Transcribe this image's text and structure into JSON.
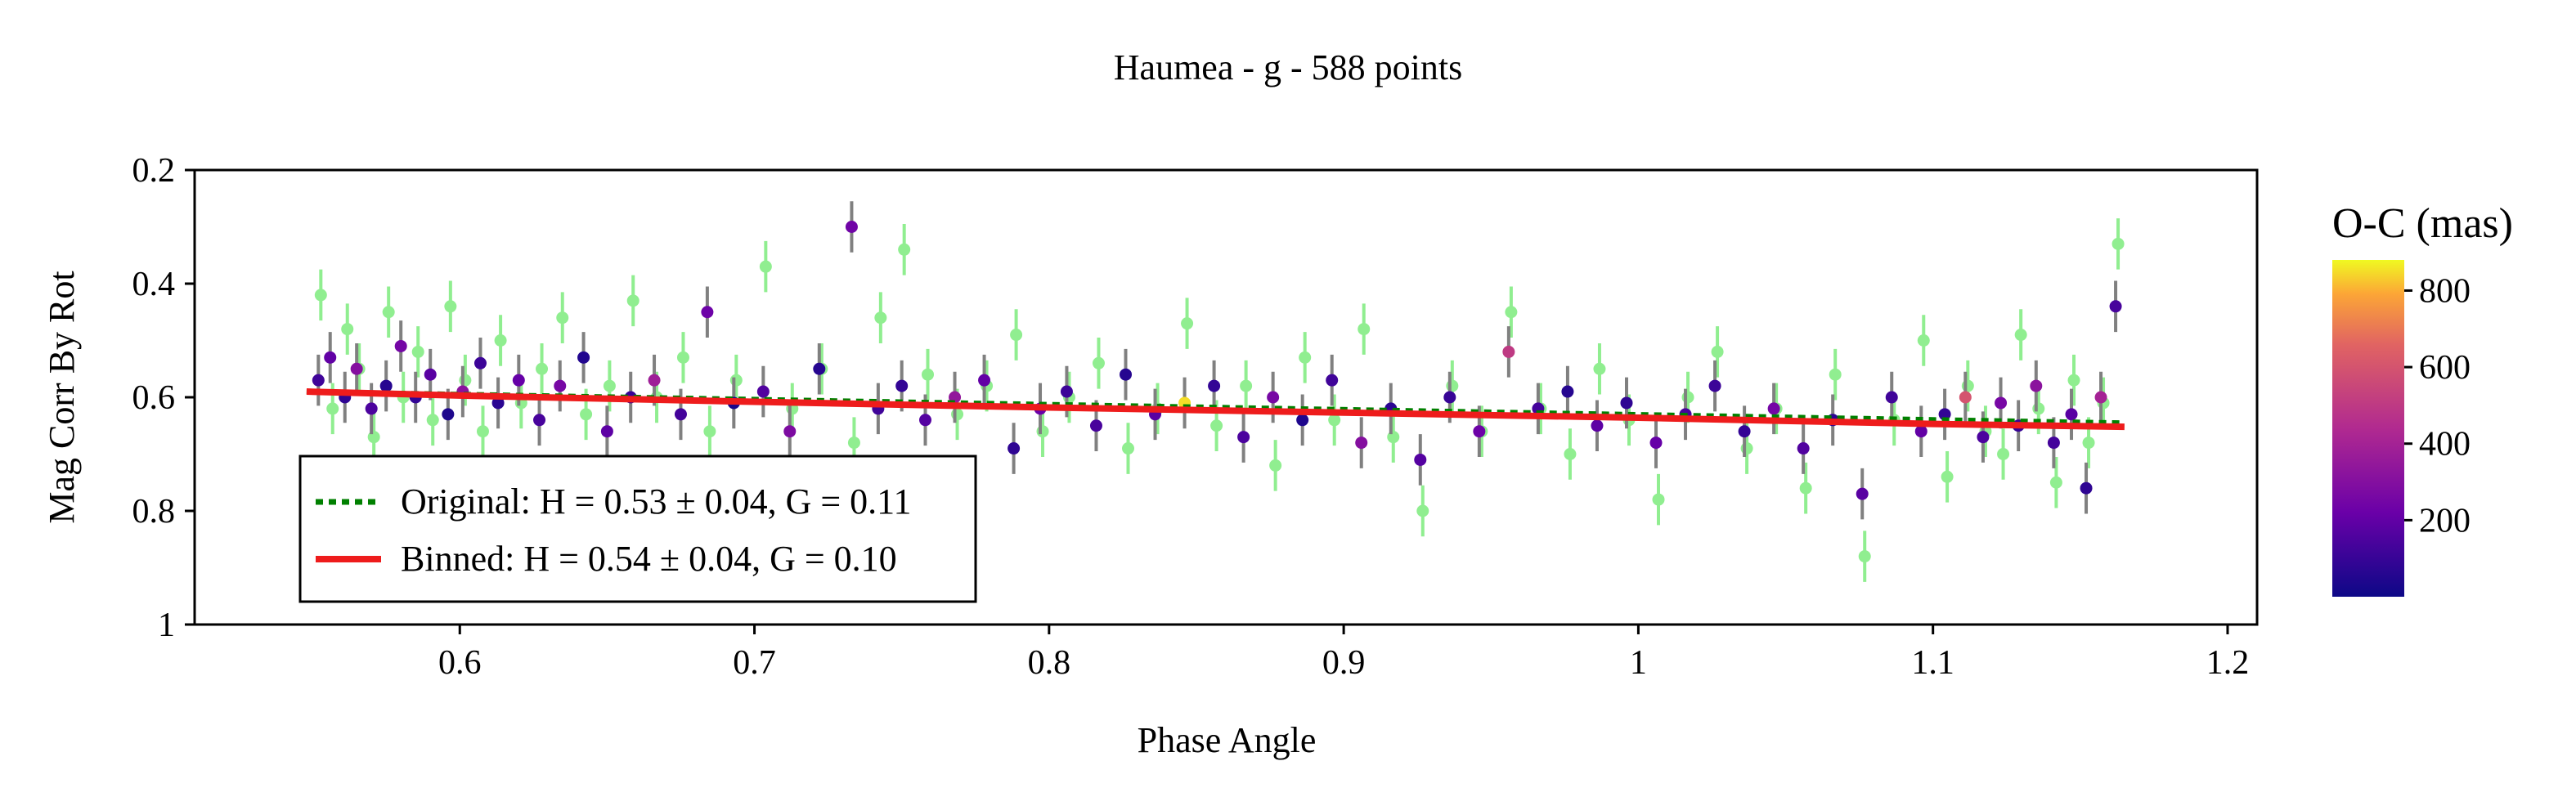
{
  "chart_data": {
    "type": "scatter",
    "title": "Haumea - g - 588 points",
    "xlabel": "Phase Angle",
    "ylabel": "Mag Corr By Rot",
    "xlim": [
      0.51,
      1.21
    ],
    "ylim": [
      1.0,
      0.2
    ],
    "y_inverted": true,
    "xticks": [
      0.6,
      0.7,
      0.8,
      0.9,
      1.0,
      1.1,
      1.2
    ],
    "xtick_labels": [
      "0.6",
      "0.7",
      "0.8",
      "0.9",
      "1",
      "1.1",
      "1.2"
    ],
    "yticks": [
      0.2,
      0.4,
      0.6,
      0.8,
      1.0
    ],
    "ytick_labels": [
      "0.2",
      "0.4",
      "0.6",
      "0.8",
      "1"
    ],
    "grid": false,
    "legend_position": "lower-left",
    "legend": [
      {
        "label": "Original: H = 0.53 ± 0.04, G = 0.11",
        "style": "dotted",
        "color": "#008000"
      },
      {
        "label": "Binned: H = 0.54 ± 0.04, G = 0.10",
        "style": "solid",
        "color": "#ee1c1c"
      }
    ],
    "series": [
      {
        "name": "Original: H = 0.53 ± 0.04, G = 0.11",
        "kind": "line",
        "color": "#008000",
        "x": [
          0.548,
          1.165
        ],
        "y": [
          0.59,
          0.645
        ]
      },
      {
        "name": "Binned: H = 0.54 ± 0.04, G = 0.10",
        "kind": "line",
        "color": "#ee1c1c",
        "x": [
          0.548,
          0.6,
          0.7,
          0.8,
          0.9,
          1.0,
          1.1,
          1.165
        ],
        "y": [
          0.59,
          0.597,
          0.608,
          0.618,
          0.627,
          0.636,
          0.647,
          0.652
        ]
      }
    ],
    "scatter_points": {
      "original_color": "#90ee90",
      "errorbar_color": "#808080",
      "x": [
        0.552,
        0.556,
        0.561,
        0.565,
        0.57,
        0.575,
        0.58,
        0.585,
        0.59,
        0.596,
        0.601,
        0.607,
        0.613,
        0.62,
        0.627,
        0.634,
        0.642,
        0.65,
        0.658,
        0.666,
        0.675,
        0.684,
        0.693,
        0.703,
        0.712,
        0.722,
        0.733,
        0.742,
        0.75,
        0.758,
        0.768,
        0.778,
        0.788,
        0.797,
        0.806,
        0.816,
        0.826,
        0.836,
        0.846,
        0.856,
        0.866,
        0.876,
        0.886,
        0.896,
        0.906,
        0.916,
        0.926,
        0.936,
        0.946,
        0.956,
        0.966,
        0.976,
        0.986,
        0.996,
        1.006,
        1.016,
        1.026,
        1.036,
        1.046,
        1.056,
        1.066,
        1.076,
        1.086,
        1.096,
        1.104,
        1.111,
        1.117,
        1.123,
        1.129,
        1.135,
        1.141,
        1.147,
        1.152,
        1.157,
        1.162
      ],
      "y_original": [
        0.42,
        0.62,
        0.48,
        0.55,
        0.67,
        0.45,
        0.6,
        0.52,
        0.64,
        0.44,
        0.57,
        0.66,
        0.5,
        0.61,
        0.55,
        0.46,
        0.63,
        0.58,
        0.43,
        0.6,
        0.53,
        0.66,
        0.57,
        0.37,
        0.62,
        0.55,
        0.68,
        0.46,
        0.34,
        0.56,
        0.63,
        0.58,
        0.49,
        0.66,
        0.6,
        0.54,
        0.69,
        0.62,
        0.47,
        0.65,
        0.58,
        0.72,
        0.53,
        0.64,
        0.48,
        0.67,
        0.8,
        0.58,
        0.66,
        0.45,
        0.62,
        0.7,
        0.55,
        0.64,
        0.78,
        0.6,
        0.52,
        0.69,
        0.62,
        0.76,
        0.56,
        0.88,
        0.64,
        0.5,
        0.74,
        0.58,
        0.66,
        0.7,
        0.49,
        0.62,
        0.75,
        0.57,
        0.68,
        0.61,
        0.33
      ],
      "y_colored": [
        0.57,
        0.53,
        0.6,
        0.55,
        0.62,
        0.58,
        0.51,
        0.6,
        0.56,
        0.63,
        0.59,
        0.54,
        0.61,
        0.57,
        0.64,
        0.58,
        0.53,
        0.66,
        0.6,
        0.57,
        0.63,
        0.45,
        0.61,
        0.59,
        0.66,
        0.55,
        0.3,
        0.62,
        0.58,
        0.64,
        0.6,
        0.57,
        0.69,
        0.62,
        0.59,
        0.65,
        0.56,
        0.63,
        0.61,
        0.58,
        0.67,
        0.6,
        0.64,
        0.57,
        0.68,
        0.62,
        0.71,
        0.6,
        0.66,
        0.52,
        0.62,
        0.59,
        0.65,
        0.61,
        0.68,
        0.63,
        0.58,
        0.66,
        0.62,
        0.69,
        0.64,
        0.77,
        0.6,
        0.66,
        0.63,
        0.6,
        0.67,
        0.61,
        0.65,
        0.58,
        0.68,
        0.63,
        0.76,
        0.6,
        0.44
      ],
      "oc_values": [
        120,
        200,
        80,
        300,
        150,
        60,
        250,
        90,
        180,
        40,
        320,
        110,
        70,
        210,
        140,
        260,
        50,
        190,
        100,
        380,
        130,
        230,
        30,
        160,
        280,
        60,
        240,
        120,
        90,
        170,
        340,
        200,
        80,
        220,
        110,
        140,
        60,
        180,
        850,
        90,
        150,
        260,
        40,
        120,
        300,
        70,
        170,
        100,
        230,
        500,
        130,
        60,
        190,
        80,
        210,
        140,
        110,
        90,
        250,
        160,
        70,
        180,
        120,
        200,
        90,
        600,
        150,
        260,
        100,
        320,
        130,
        180,
        80,
        400,
        140
      ]
    },
    "colorbar": {
      "label": "O-C (mas)",
      "range": [
        0,
        880
      ],
      "ticks": [
        200,
        400,
        600,
        800
      ],
      "tick_labels": [
        "200",
        "400",
        "600",
        "800"
      ],
      "colormap": "plasma"
    }
  }
}
